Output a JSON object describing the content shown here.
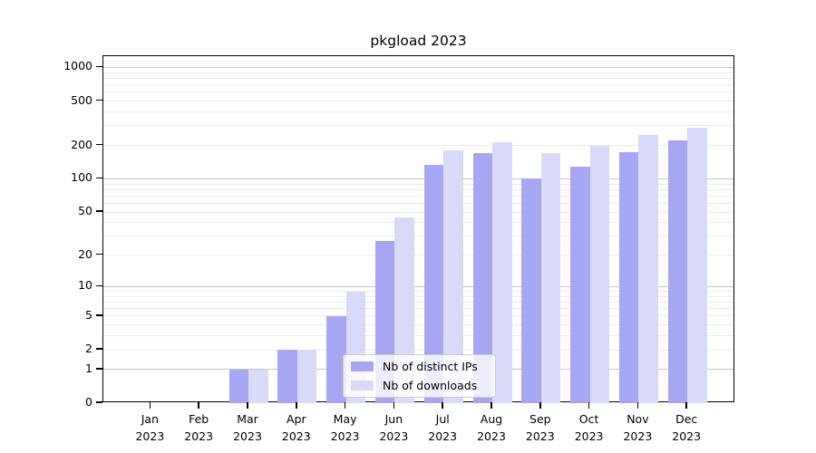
{
  "chart_data": {
    "type": "bar",
    "title": "pkgload 2023",
    "categories": [
      "Jan 2023",
      "Feb 2023",
      "Mar 2023",
      "Apr 2023",
      "May 2023",
      "Jun 2023",
      "Jul 2023",
      "Aug 2023",
      "Sep 2023",
      "Oct 2023",
      "Nov 2023",
      "Dec 2023"
    ],
    "series": [
      {
        "name": "Nb of distinct IPs",
        "color": "#a6a6f2",
        "values": [
          0,
          0,
          1,
          2,
          5,
          27,
          133,
          170,
          100,
          128,
          175,
          222
        ]
      },
      {
        "name": "Nb of downloads",
        "color": "#d9d9f8",
        "values": [
          0,
          0,
          1,
          2,
          9,
          45,
          182,
          212,
          170,
          200,
          248,
          288
        ]
      }
    ],
    "xlabel": "",
    "ylabel": "",
    "yscale": "log1p",
    "ylim": [
      0,
      1260
    ],
    "yticks": [
      0,
      1,
      2,
      5,
      10,
      20,
      50,
      100,
      200,
      500,
      1000
    ],
    "grid": {
      "on": true,
      "major_values": [
        1,
        10,
        100,
        1000
      ],
      "minor_values": [
        2,
        3,
        4,
        5,
        6,
        7,
        8,
        9,
        20,
        30,
        40,
        50,
        60,
        70,
        80,
        90,
        200,
        300,
        400,
        500,
        600,
        700,
        800,
        900
      ]
    },
    "legend_position": "lower center"
  },
  "legend": {
    "items": [
      {
        "label": "Nb of distinct IPs",
        "color": "#a6a6f2"
      },
      {
        "label": "Nb of downloads",
        "color": "#d9d9f8"
      }
    ]
  }
}
